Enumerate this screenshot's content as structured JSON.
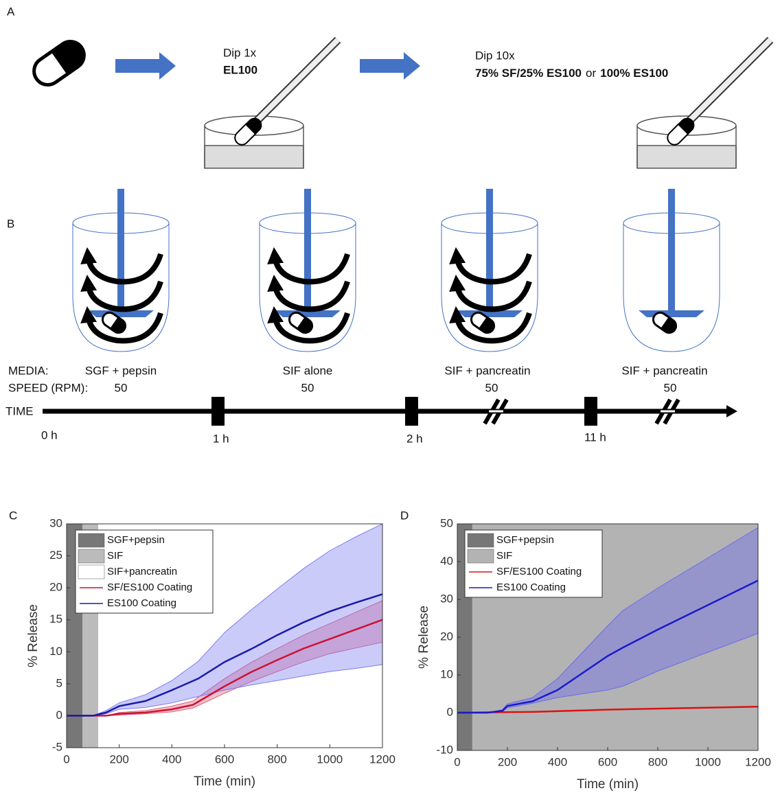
{
  "panel_a": {
    "label": "A",
    "step1": {
      "line1": "Dip 1x",
      "line2": "EL100"
    },
    "step2": {
      "line1": "Dip 10x",
      "option1": "75% SF/25% ES100",
      "joiner": "or",
      "option2": "100% ES100"
    }
  },
  "panel_b": {
    "label": "B",
    "media_label": "MEDIA:",
    "speed_label": "SPEED (RPM):",
    "time_label": "TIME",
    "stages": [
      {
        "media": "SGF + pepsin",
        "speed": 50
      },
      {
        "media": "SIF alone",
        "speed": 50
      },
      {
        "media": "SIF + pancreatin",
        "speed": 50
      },
      {
        "media": "SIF + pancreatin",
        "speed": 50
      }
    ],
    "time_marks": [
      "0 h",
      "1 h",
      "2 h",
      "11 h"
    ]
  },
  "chart_data": [
    {
      "type": "line",
      "label": "C",
      "xlabel": "Time (min)",
      "ylabel": "% Release",
      "xlim": [
        0,
        1200
      ],
      "xticks": [
        0,
        200,
        400,
        600,
        800,
        1000,
        1200
      ],
      "ylim": [
        -5,
        30
      ],
      "yticks": [
        -5,
        0,
        5,
        10,
        15,
        20,
        25,
        30
      ],
      "regions": [
        {
          "name": "SGF+pepsin",
          "color": "#777777",
          "start": 0,
          "end": 60
        },
        {
          "name": "SIF",
          "color": "#bbbbbb",
          "start": 60,
          "end": 120
        },
        {
          "name": "SIF+pancreatin",
          "color": "#ffffff",
          "start": 120,
          "end": 1200
        }
      ],
      "series": [
        {
          "name": "SF/ES100 Coating",
          "color": "#cc1133",
          "band_color": "#e0607a",
          "x": [
            0,
            150,
            200,
            300,
            400,
            480,
            600,
            700,
            800,
            900,
            1000,
            1100,
            1200
          ],
          "values": [
            0,
            0,
            0.3,
            0.5,
            1,
            1.7,
            4.6,
            6.8,
            8.7,
            10.5,
            12,
            13.5,
            15
          ],
          "lower": [
            0,
            0,
            0.1,
            0.3,
            0.6,
            1.2,
            3.5,
            5.3,
            6.9,
            8.4,
            9.7,
            10.6,
            11.5
          ],
          "upper": [
            0,
            0,
            0.5,
            0.8,
            1.5,
            2.3,
            5.8,
            8.3,
            10.5,
            12.6,
            14.4,
            16.2,
            18
          ]
        },
        {
          "name": "ES100 Coating",
          "color": "#1a1aaa",
          "band_color": "#7d7df0",
          "x": [
            0,
            100,
            150,
            200,
            300,
            400,
            500,
            600,
            700,
            800,
            900,
            1000,
            1100,
            1200
          ],
          "values": [
            0,
            0,
            0.5,
            1.5,
            2.3,
            4,
            5.8,
            8.4,
            10.4,
            12.6,
            14.6,
            16.3,
            17.7,
            19
          ],
          "lower": [
            0,
            0,
            0.3,
            1,
            1.3,
            2,
            3,
            4,
            4.8,
            5.5,
            6.2,
            6.9,
            7.4,
            8
          ],
          "upper": [
            0,
            0,
            0.8,
            2,
            3.3,
            5.5,
            8.5,
            13,
            16.5,
            19.8,
            23,
            25.8,
            28,
            30
          ]
        }
      ]
    },
    {
      "type": "line",
      "label": "D",
      "xlabel": "Time (min)",
      "ylabel": "% Release",
      "xlim": [
        0,
        1200
      ],
      "xticks": [
        0,
        200,
        400,
        600,
        800,
        1000,
        1200
      ],
      "ylim": [
        -10,
        50
      ],
      "yticks": [
        -10,
        0,
        10,
        20,
        30,
        40,
        50
      ],
      "regions": [
        {
          "name": "SGF+pepsin",
          "color": "#777777",
          "start": 0,
          "end": 60
        },
        {
          "name": "SIF",
          "color": "#b3b3b3",
          "start": 60,
          "end": 1200
        }
      ],
      "series": [
        {
          "name": "SF/ES100 Coating",
          "color": "#dd1111",
          "x": [
            0,
            300,
            600,
            900,
            1200
          ],
          "values": [
            0,
            0.2,
            0.8,
            1.2,
            1.6
          ]
        },
        {
          "name": "ES100 Coating",
          "color": "#1a1acc",
          "band_color": "#6a6af0",
          "x": [
            0,
            120,
            180,
            200,
            300,
            400,
            500,
            600,
            660,
            800,
            1000,
            1200
          ],
          "values": [
            0,
            0,
            0.5,
            1.8,
            3,
            6,
            10.5,
            15,
            17.2,
            22,
            28.5,
            35
          ],
          "lower": [
            0,
            0,
            0.3,
            1.3,
            2.5,
            4,
            5,
            6,
            7,
            11,
            16,
            21
          ],
          "upper": [
            0,
            0,
            0.8,
            2.3,
            4,
            9,
            16,
            23,
            27,
            33,
            41,
            49
          ]
        }
      ]
    }
  ]
}
